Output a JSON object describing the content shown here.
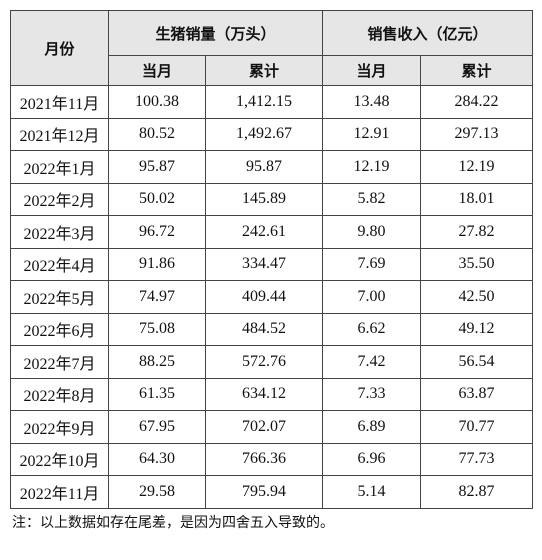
{
  "table": {
    "header": {
      "month": "月份",
      "groups": [
        "生猪销量（万头）",
        "销售收入（亿元）"
      ],
      "sub": [
        "当月",
        "累计",
        "当月",
        "累计"
      ]
    },
    "rows": [
      [
        "2021年11月",
        "100.38",
        "1,412.15",
        "13.48",
        "284.22"
      ],
      [
        "2021年12月",
        "80.52",
        "1,492.67",
        "12.91",
        "297.13"
      ],
      [
        "2022年1月",
        "95.87",
        "95.87",
        "12.19",
        "12.19"
      ],
      [
        "2022年2月",
        "50.02",
        "145.89",
        "5.82",
        "18.01"
      ],
      [
        "2022年3月",
        "96.72",
        "242.61",
        "9.80",
        "27.82"
      ],
      [
        "2022年4月",
        "91.86",
        "334.47",
        "7.69",
        "35.50"
      ],
      [
        "2022年5月",
        "74.97",
        "409.44",
        "7.00",
        "42.50"
      ],
      [
        "2022年6月",
        "75.08",
        "484.52",
        "6.62",
        "49.12"
      ],
      [
        "2022年7月",
        "88.25",
        "572.76",
        "7.42",
        "56.54"
      ],
      [
        "2022年8月",
        "61.35",
        "634.12",
        "7.33",
        "63.87"
      ],
      [
        "2022年9月",
        "67.95",
        "702.07",
        "6.89",
        "70.77"
      ],
      [
        "2022年10月",
        "64.30",
        "766.36",
        "6.96",
        "77.73"
      ],
      [
        "2022年11月",
        "29.58",
        "795.94",
        "5.14",
        "82.87"
      ]
    ]
  },
  "note": "注：以上数据如存在尾差，是因为四舍五入导致的。"
}
